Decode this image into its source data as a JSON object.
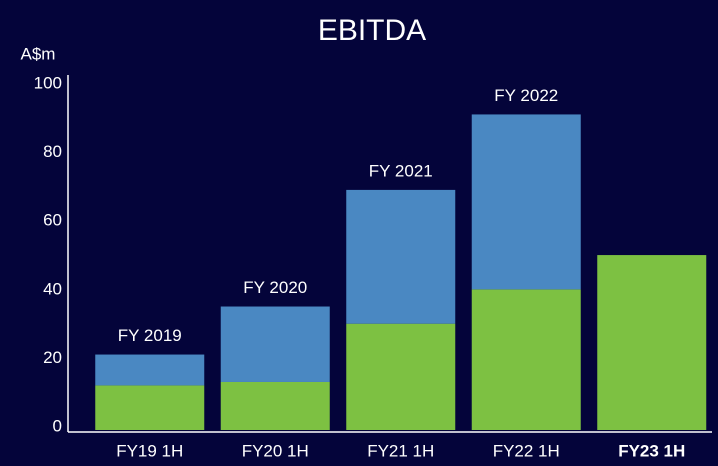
{
  "chart_data": {
    "type": "stacked_bar",
    "title": "EBITDA",
    "y_label": "A$m",
    "categories": [
      "FY19 1H",
      "FY20 1H",
      "FY21 1H",
      "FY22 1H",
      "FY23 1H"
    ],
    "series": [
      {
        "color": "#7dc142",
        "values": [
          13,
          14,
          31,
          41,
          51
        ]
      },
      {
        "color": "#4a88c2",
        "values": [
          9,
          22,
          39,
          51,
          null
        ]
      }
    ],
    "annotations": [
      "FY 2019",
      "FY 2020",
      "FY 2021",
      "FY 2022",
      null
    ],
    "ylim": [
      0,
      100
    ],
    "yticks": [
      0,
      20,
      40,
      60,
      80,
      100
    ],
    "grid": false
  }
}
